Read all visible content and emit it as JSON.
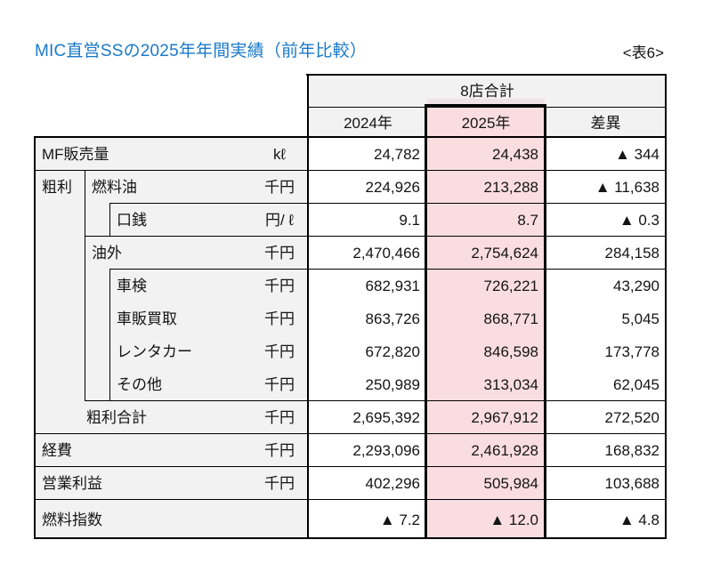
{
  "page": {
    "title": "MIC直営SSの2025年年間実績（前年比較）",
    "table_tag": "<表6>"
  },
  "colors": {
    "title_blue": "#1a79c9",
    "highlight_pink": "#fadde1",
    "highlight_pale_strip": "#f0e2e5",
    "cell_gray": "#f2f2f2",
    "grid_black": "#000000"
  },
  "table": {
    "group_header": "8店合計",
    "col_headers": [
      "2024年",
      "2025年",
      "差異"
    ],
    "group_label": "粗利",
    "rows": [
      {
        "id": "mf-sales-volume",
        "label": "MF販売量",
        "unit": "kℓ",
        "indent": "0",
        "values": [
          "24,782",
          "24,438",
          "▲ 344"
        ]
      },
      {
        "id": "fuel-oil",
        "label": "燃料油",
        "unit": "千円",
        "indent": "1",
        "values": [
          "224,926",
          "213,288",
          "▲ 11,638"
        ]
      },
      {
        "id": "fuel-margin",
        "label": "口銭",
        "unit": "円/ ℓ",
        "indent": "2",
        "values": [
          "9.1",
          "8.7",
          "▲ 0.3"
        ]
      },
      {
        "id": "non-fuel",
        "label": "油外",
        "unit": "千円",
        "indent": "1",
        "values": [
          "2,470,466",
          "2,754,624",
          "284,158"
        ]
      },
      {
        "id": "vehicle-inspection",
        "label": "車検",
        "unit": "千円",
        "indent": "2",
        "values": [
          "682,931",
          "726,221",
          "43,290"
        ]
      },
      {
        "id": "car-sales-purchase",
        "label": "車販買取",
        "unit": "千円",
        "indent": "2",
        "values": [
          "863,726",
          "868,771",
          "5,045"
        ]
      },
      {
        "id": "rental-car",
        "label": "レンタカー",
        "unit": "千円",
        "indent": "2",
        "values": [
          "672,820",
          "846,598",
          "173,778"
        ]
      },
      {
        "id": "other",
        "label": "その他",
        "unit": "千円",
        "indent": "2",
        "values": [
          "250,989",
          "313,034",
          "62,045"
        ]
      },
      {
        "id": "gross-profit-total",
        "label": "粗利合計",
        "unit": "千円",
        "indent": "total",
        "values": [
          "2,695,392",
          "2,967,912",
          "272,520"
        ]
      },
      {
        "id": "expenses",
        "label": "経費",
        "unit": "千円",
        "indent": "0",
        "values": [
          "2,293,096",
          "2,461,928",
          "168,832"
        ]
      },
      {
        "id": "operating-profit",
        "label": "営業利益",
        "unit": "千円",
        "indent": "0",
        "values": [
          "402,296",
          "505,984",
          "103,688"
        ]
      },
      {
        "id": "fuel-index",
        "label": "燃料指数",
        "unit": "",
        "indent": "0",
        "values": [
          "▲ 7.2",
          "▲ 12.0",
          "▲ 4.8"
        ]
      }
    ]
  }
}
